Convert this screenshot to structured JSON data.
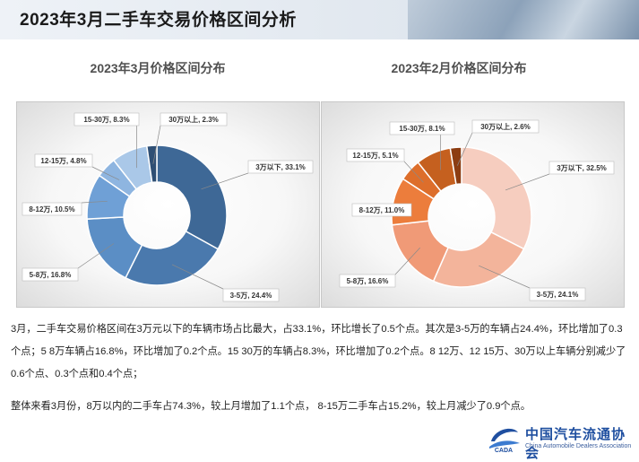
{
  "header": {
    "title": "2023年3月二手车交易价格区间分析"
  },
  "chart_data": [
    {
      "type": "pie",
      "donut": true,
      "title": "2023年3月价格区间分布",
      "categories": [
        "3万以下",
        "3-5万",
        "5-8万",
        "8-12万",
        "12-15万",
        "15-30万",
        "30万以上"
      ],
      "values": [
        33.1,
        24.4,
        16.8,
        10.5,
        4.8,
        8.3,
        2.3
      ],
      "unit": "%",
      "labels": [
        "3万以下, 33.1%",
        "3-5万, 24.4%",
        "5-8万, 16.8%",
        "8-12万, 10.5%",
        "12-15万, 4.8%",
        "15-30万, 8.3%",
        "30万以上, 2.3%"
      ],
      "colors": [
        "#3e6896",
        "#4a79ad",
        "#5b8ec5",
        "#6fa0d6",
        "#8eb5e0",
        "#aac8e8",
        "#2f4f74"
      ]
    },
    {
      "type": "pie",
      "donut": true,
      "title": "2023年2月价格区间分布",
      "categories": [
        "3万以下",
        "3-5万",
        "5-8万",
        "8-12万",
        "12-15万",
        "15-30万",
        "30万以上"
      ],
      "values": [
        32.5,
        24.1,
        16.6,
        11.0,
        5.1,
        8.1,
        2.6
      ],
      "unit": "%",
      "labels": [
        "3万以下, 32.5%",
        "3-5万, 24.1%",
        "5-8万, 16.6%",
        "8-12万, 11.0%",
        "12-15万, 5.1%",
        "15-30万, 8.1%",
        "30万以上, 2.6%"
      ],
      "colors": [
        "#f6cdbf",
        "#f3b49b",
        "#f09a77",
        "#ec7d3c",
        "#dd6e2b",
        "#c5601f",
        "#8c3d12"
      ]
    }
  ],
  "text": {
    "para1": "3月，二手车交易价格区间在3万元以下的车辆市场占比最大，占33.1%，环比增长了0.5个点。其次是3-5万的车辆占24.4%，环比增加了0.3个点；5 8万车辆占16.8%，环比增加了0.2个点。15 30万的车辆占8.3%，环比增加了0.2个点。8 12万、12 15万、30万以上车辆分别减少了0.6个点、0.3个点和0.4个点；",
    "para2": "整体来看3月份，8万以内的二手车占74.3%，较上月增加了1.1个点， 8-15万二手车占15.2%，较上月减少了0.9个点。"
  },
  "logo": {
    "mark": "CADA",
    "name_cn": "中国汽车流通协会",
    "name_en": "China Automobile Dealers Association"
  }
}
